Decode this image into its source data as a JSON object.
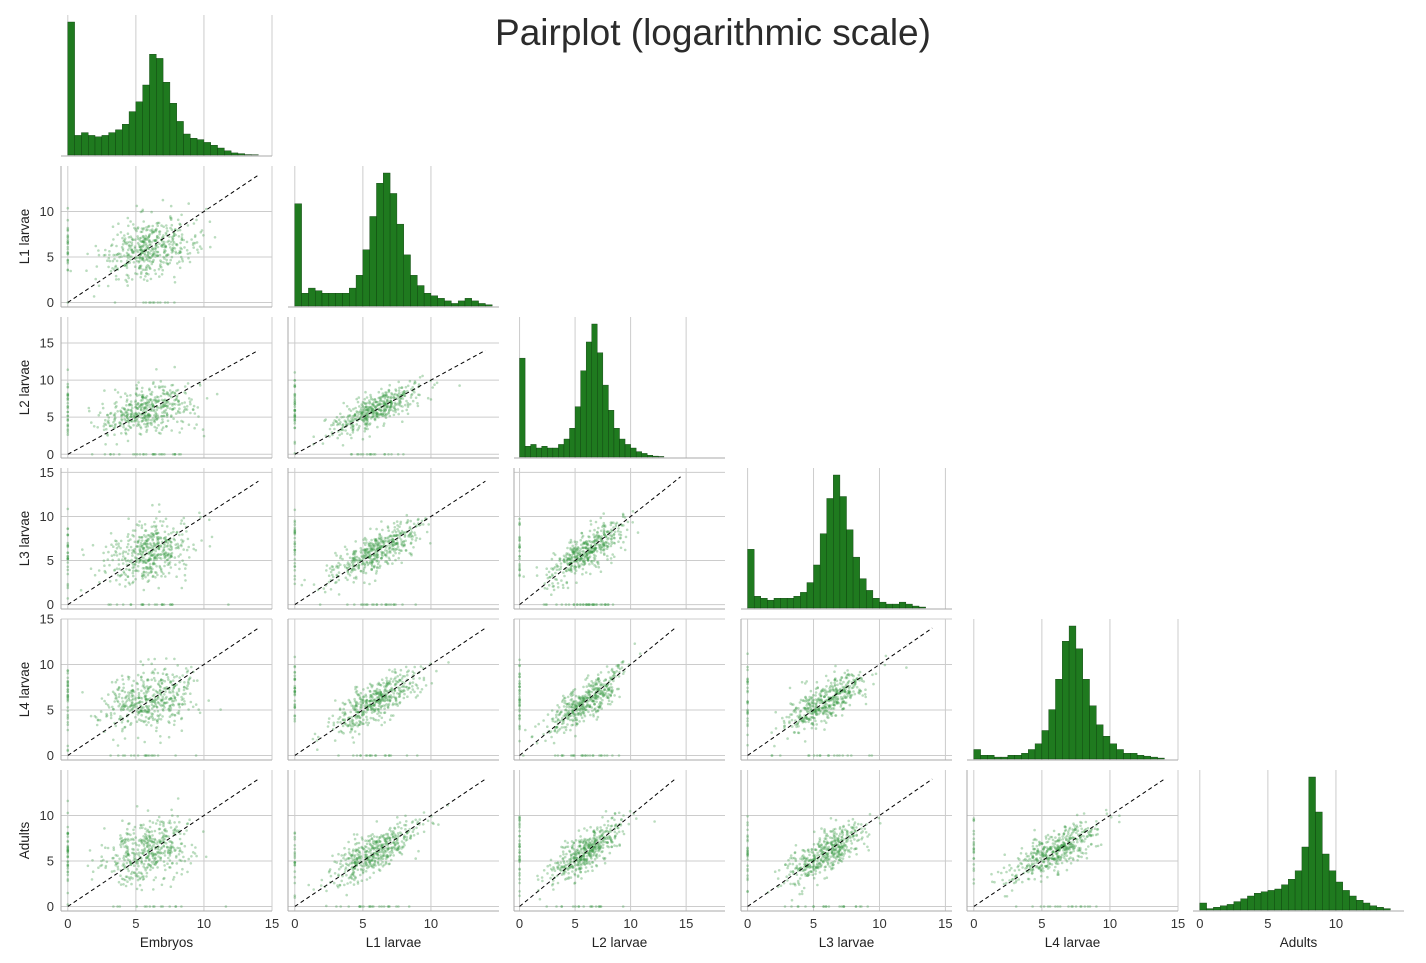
{
  "figure": {
    "title": "Pairplot (logarithmic scale)"
  },
  "chart_data": {
    "type": "scatter",
    "title": "Pairplot (logarithmic scale)",
    "layout": "lower-triangular pairplot with diagonal histograms",
    "grid": true,
    "variables": [
      {
        "name": "Embryos",
        "range": [
          -0.5,
          15.0
        ],
        "ticks": [
          0,
          5,
          10,
          15
        ]
      },
      {
        "name": "L1 larvae",
        "range": [
          -0.5,
          15.0
        ],
        "ticks": [
          0,
          5,
          10
        ]
      },
      {
        "name": "L2 larvae",
        "range": [
          -0.5,
          18.5
        ],
        "ticks": [
          0,
          5,
          10,
          15
        ]
      },
      {
        "name": "L3 larvae",
        "range": [
          -0.5,
          15.5
        ],
        "ticks": [
          0,
          5,
          10,
          15
        ]
      },
      {
        "name": "L4 larvae",
        "range": [
          -0.5,
          15.0
        ],
        "ticks": [
          0,
          5,
          10,
          15
        ]
      },
      {
        "name": "Adults",
        "range": [
          -0.5,
          15.0
        ],
        "ticks": [
          0,
          5,
          10
        ]
      }
    ],
    "diagonal_histograms": [
      {
        "variable": "Embryos",
        "bin_width": 0.5,
        "start": 0,
        "counts": [
          95,
          14,
          16,
          14,
          13,
          14,
          16,
          18,
          22,
          31,
          38,
          50,
          72,
          69,
          52,
          37,
          24,
          15,
          12,
          11,
          9,
          7,
          5,
          3,
          1.5,
          1,
          0.3,
          0.2
        ]
      },
      {
        "variable": "L1 larvae",
        "bin_width": 0.5,
        "start": 0,
        "counts": [
          40,
          5,
          7,
          6,
          5,
          5,
          5,
          5,
          7,
          12,
          22,
          35,
          48,
          52,
          44,
          32,
          20,
          12,
          8,
          5,
          4,
          3,
          2,
          1,
          2,
          3,
          2,
          1,
          0.5
        ]
      },
      {
        "variable": "L2 larvae",
        "bin_width": 0.5,
        "start": 0,
        "counts": [
          55,
          6,
          7,
          5,
          6,
          5,
          5,
          7,
          10,
          16,
          28,
          48,
          64,
          74,
          58,
          40,
          26,
          16,
          10,
          7,
          5,
          3,
          2,
          1,
          0.5,
          0.3
        ]
      },
      {
        "variable": "L3 larvae",
        "bin_width": 0.5,
        "start": 0,
        "counts": [
          30,
          6,
          5,
          4,
          5,
          5,
          5,
          6,
          8,
          13,
          22,
          38,
          56,
          68,
          57,
          40,
          26,
          15,
          9,
          5,
          3,
          2,
          2,
          3,
          2,
          1,
          0.5
        ]
      },
      {
        "variable": "L4 larvae",
        "bin_width": 0.5,
        "start": 0,
        "counts": [
          5,
          2,
          2,
          1,
          1,
          2,
          2,
          3,
          5,
          8,
          15,
          26,
          42,
          62,
          70,
          58,
          42,
          28,
          18,
          12,
          8,
          5,
          3,
          3,
          2,
          1.5,
          1,
          0.5
        ]
      },
      {
        "variable": "Adults",
        "bin_width": 0.5,
        "start": 0,
        "counts": [
          5,
          1,
          2,
          3,
          4,
          6,
          8,
          10,
          12,
          13,
          14,
          15,
          18,
          22,
          28,
          45,
          95,
          70,
          40,
          28,
          20,
          14,
          10,
          7,
          5,
          3,
          2,
          1
        ]
      }
    ],
    "scatter_panels": [
      {
        "x": "Embryos",
        "y": "L1 larvae"
      },
      {
        "x": "Embryos",
        "y": "L2 larvae"
      },
      {
        "x": "L1 larvae",
        "y": "L2 larvae"
      },
      {
        "x": "Embryos",
        "y": "L3 larvae"
      },
      {
        "x": "L1 larvae",
        "y": "L3 larvae"
      },
      {
        "x": "L2 larvae",
        "y": "L3 larvae"
      },
      {
        "x": "Embryos",
        "y": "L4 larvae"
      },
      {
        "x": "L1 larvae",
        "y": "L4 larvae"
      },
      {
        "x": "L2 larvae",
        "y": "L4 larvae"
      },
      {
        "x": "L3 larvae",
        "y": "L4 larvae"
      },
      {
        "x": "Embryos",
        "y": "Adults"
      },
      {
        "x": "L1 larvae",
        "y": "Adults"
      },
      {
        "x": "L2 larvae",
        "y": "Adults"
      },
      {
        "x": "L3 larvae",
        "y": "Adults"
      },
      {
        "x": "L4 larvae",
        "y": "Adults"
      }
    ],
    "identity_line": {
      "style": "dashed",
      "color": "#000000"
    },
    "colors": {
      "bars": "#1f7a1f",
      "points": "#3a9a44",
      "grid": "#cccccc",
      "text": "#222222"
    }
  }
}
